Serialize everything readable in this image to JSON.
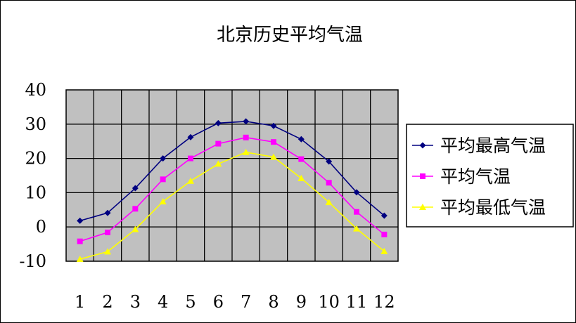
{
  "chart_data": {
    "type": "line",
    "title": "北京历史平均气温",
    "xlabel": "",
    "ylabel": "",
    "categories": [
      "1",
      "2",
      "3",
      "4",
      "5",
      "6",
      "7",
      "8",
      "9",
      "10",
      "11",
      "12"
    ],
    "ylim": [
      -10,
      40
    ],
    "yticks": [
      "40",
      "30",
      "20",
      "10",
      "0",
      "-10"
    ],
    "grid": true,
    "legend_position": "right",
    "series": [
      {
        "name": "平均最高气温",
        "color": "#000080",
        "marker": "diamond",
        "values": [
          1.8,
          4.1,
          11.3,
          20.0,
          26.2,
          30.3,
          30.8,
          29.5,
          25.6,
          19.1,
          10.1,
          3.3
        ]
      },
      {
        "name": "平均气温",
        "color": "#ff00ff",
        "marker": "square",
        "values": [
          -4.2,
          -1.6,
          5.3,
          13.9,
          20.0,
          24.3,
          26.1,
          24.8,
          19.8,
          12.9,
          4.4,
          -2.2
        ]
      },
      {
        "name": "平均最低气温",
        "color": "#ffff00",
        "marker": "triangle",
        "values": [
          -9.4,
          -7.2,
          -0.7,
          7.4,
          13.4,
          18.4,
          21.8,
          20.4,
          14.2,
          7.2,
          -0.5,
          -7.1
        ]
      }
    ]
  }
}
